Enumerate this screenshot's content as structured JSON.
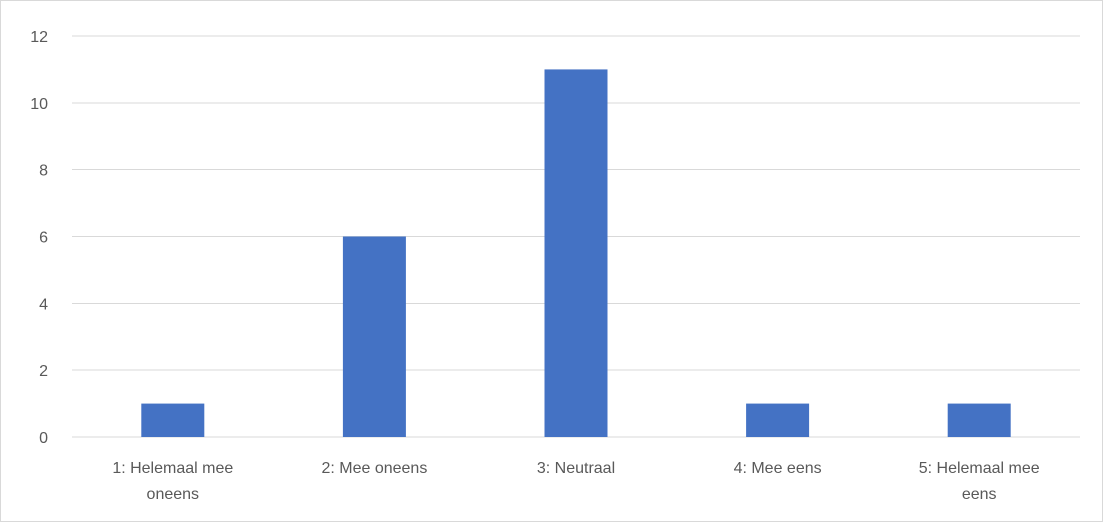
{
  "chart_data": {
    "type": "bar",
    "categories": [
      [
        "1: Helemaal mee",
        "oneens"
      ],
      [
        "2: Mee oneens"
      ],
      [
        "3: Neutraal"
      ],
      [
        "4: Mee eens"
      ],
      [
        "5: Helemaal mee",
        "eens"
      ]
    ],
    "values": [
      1,
      6,
      11,
      1,
      1
    ],
    "yticks": [
      0,
      2,
      4,
      6,
      8,
      10,
      12
    ],
    "ylim": [
      0,
      12
    ],
    "title": "",
    "xlabel": "",
    "ylabel": "",
    "grid": true,
    "legend": "none",
    "colors": {
      "bar": "#4472c4",
      "grid": "#d9d9d9",
      "axis": "#d9d9d9",
      "text": "#595959"
    }
  }
}
